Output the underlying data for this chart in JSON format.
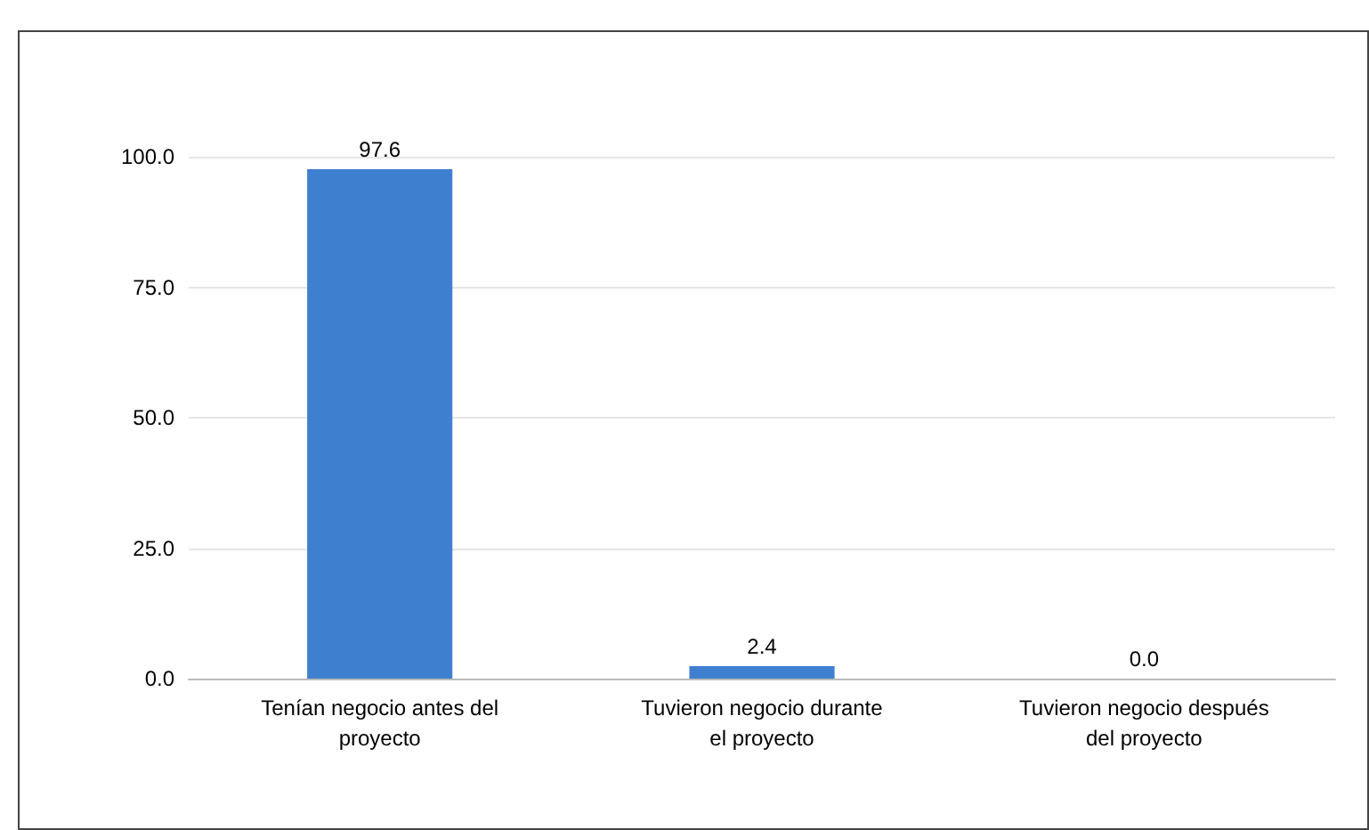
{
  "chart_data": {
    "type": "bar",
    "categories": [
      "Tenían negocio antes del proyecto",
      "Tuvieron negocio durante el proyecto",
      "Tuvieron negocio después del proyecto"
    ],
    "values": [
      97.6,
      2.4,
      0.0
    ],
    "color": "#3f7fd0",
    "value_labels": [
      "97.6",
      "2.4",
      "0.0"
    ],
    "ylim": [
      0,
      100
    ],
    "yticks": [
      {
        "value": 0,
        "label": "0.0"
      },
      {
        "value": 25,
        "label": "25.0"
      },
      {
        "value": 50,
        "label": "50.0"
      },
      {
        "value": 75,
        "label": "75.0"
      },
      {
        "value": 100,
        "label": "100.0"
      }
    ],
    "grid": "y"
  }
}
